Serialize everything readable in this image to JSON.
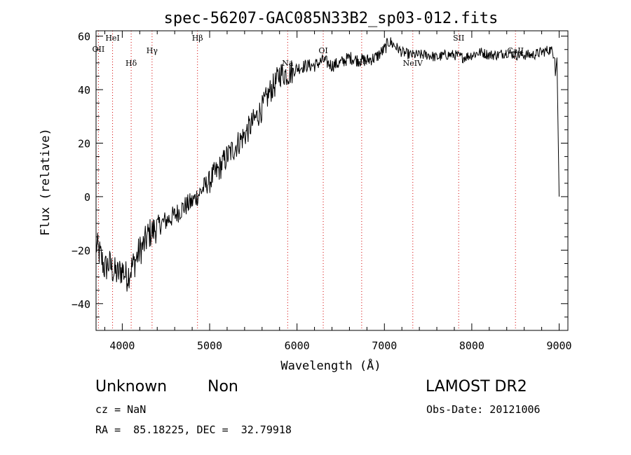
{
  "chart_data": {
    "type": "line",
    "title": "spec-56207-GAC085N33B2_sp03-012.fits",
    "xlabel": "Wavelength (Å)",
    "ylabel": "Flux (relative)",
    "xlim": [
      3700,
      9100
    ],
    "ylim": [
      -50,
      62
    ],
    "xticks": [
      4000,
      5000,
      6000,
      7000,
      8000,
      9000
    ],
    "xtick_labels": [
      "4000",
      "5000",
      "6000",
      "7000",
      "8000",
      "9000"
    ],
    "yticks": [
      -40,
      -20,
      0,
      20,
      40,
      60
    ],
    "ytick_labels": [
      "−40",
      "−20",
      "0",
      "20",
      "40",
      "60"
    ],
    "grid": false,
    "series": [
      {
        "color": "#000000",
        "x": [
          3700,
          3750,
          3800,
          3850,
          3900,
          3950,
          4000,
          4050,
          4100,
          4150,
          4200,
          4250,
          4300,
          4350,
          4400,
          4500,
          4600,
          4700,
          4800,
          4900,
          5000,
          5100,
          5200,
          5300,
          5400,
          5500,
          5600,
          5700,
          5750,
          5800,
          5900,
          6000,
          6100,
          6200,
          6300,
          6400,
          6500,
          6600,
          6700,
          6800,
          6900,
          7000,
          7050,
          7100,
          7200,
          7300,
          7400,
          7500,
          7600,
          7700,
          7800,
          7900,
          8000,
          8100,
          8200,
          8300,
          8400,
          8500,
          8600,
          8700,
          8800,
          8900,
          8950,
          9000
        ],
        "y": [
          -18,
          -22,
          -27,
          -25,
          -28,
          -29,
          -27,
          -30,
          -27,
          -24,
          -20,
          -18,
          -14,
          -13,
          -11,
          -9,
          -7,
          -4,
          -2,
          2,
          6,
          10,
          15,
          19,
          23,
          28,
          33,
          40,
          42,
          46,
          46,
          48,
          49,
          49,
          51,
          49,
          50,
          52,
          51,
          51,
          52,
          55,
          58,
          57,
          54,
          53,
          53,
          53,
          52,
          53,
          53,
          52,
          53,
          54,
          53,
          53,
          54,
          53,
          53,
          53,
          54,
          55,
          53,
          0
        ]
      }
    ],
    "spectral_lines": [
      {
        "label": "OII",
        "x": 3727,
        "color": "#d40000"
      },
      {
        "label": "HeI",
        "x": 3889,
        "color": "#d40000"
      },
      {
        "label": "Hδ",
        "x": 4102,
        "color": "#d40000"
      },
      {
        "label": "Hγ",
        "x": 4341,
        "color": "#d40000"
      },
      {
        "label": "Hβ",
        "x": 4861,
        "color": "#d40000"
      },
      {
        "label": "Na",
        "x": 5893,
        "color": "#d40000"
      },
      {
        "label": "OI",
        "x": 6300,
        "color": "#d40000"
      },
      {
        "label": "Hα",
        "x": 6740,
        "color": "#d40000"
      },
      {
        "label": "NeIV",
        "x": 7325,
        "color": "#d40000"
      },
      {
        "label": "SII",
        "x": 7850,
        "color": "#d40000"
      },
      {
        "label": "CaII",
        "x": 8500,
        "color": "#d40000"
      }
    ]
  },
  "footer": {
    "classification": "Unknown",
    "subclass": "Non",
    "redshift": "cz = NaN",
    "coordinates": "RA =  85.18225, DEC =  32.79918",
    "survey": "LAMOST DR2",
    "obs_date": "Obs-Date: 20121006"
  }
}
